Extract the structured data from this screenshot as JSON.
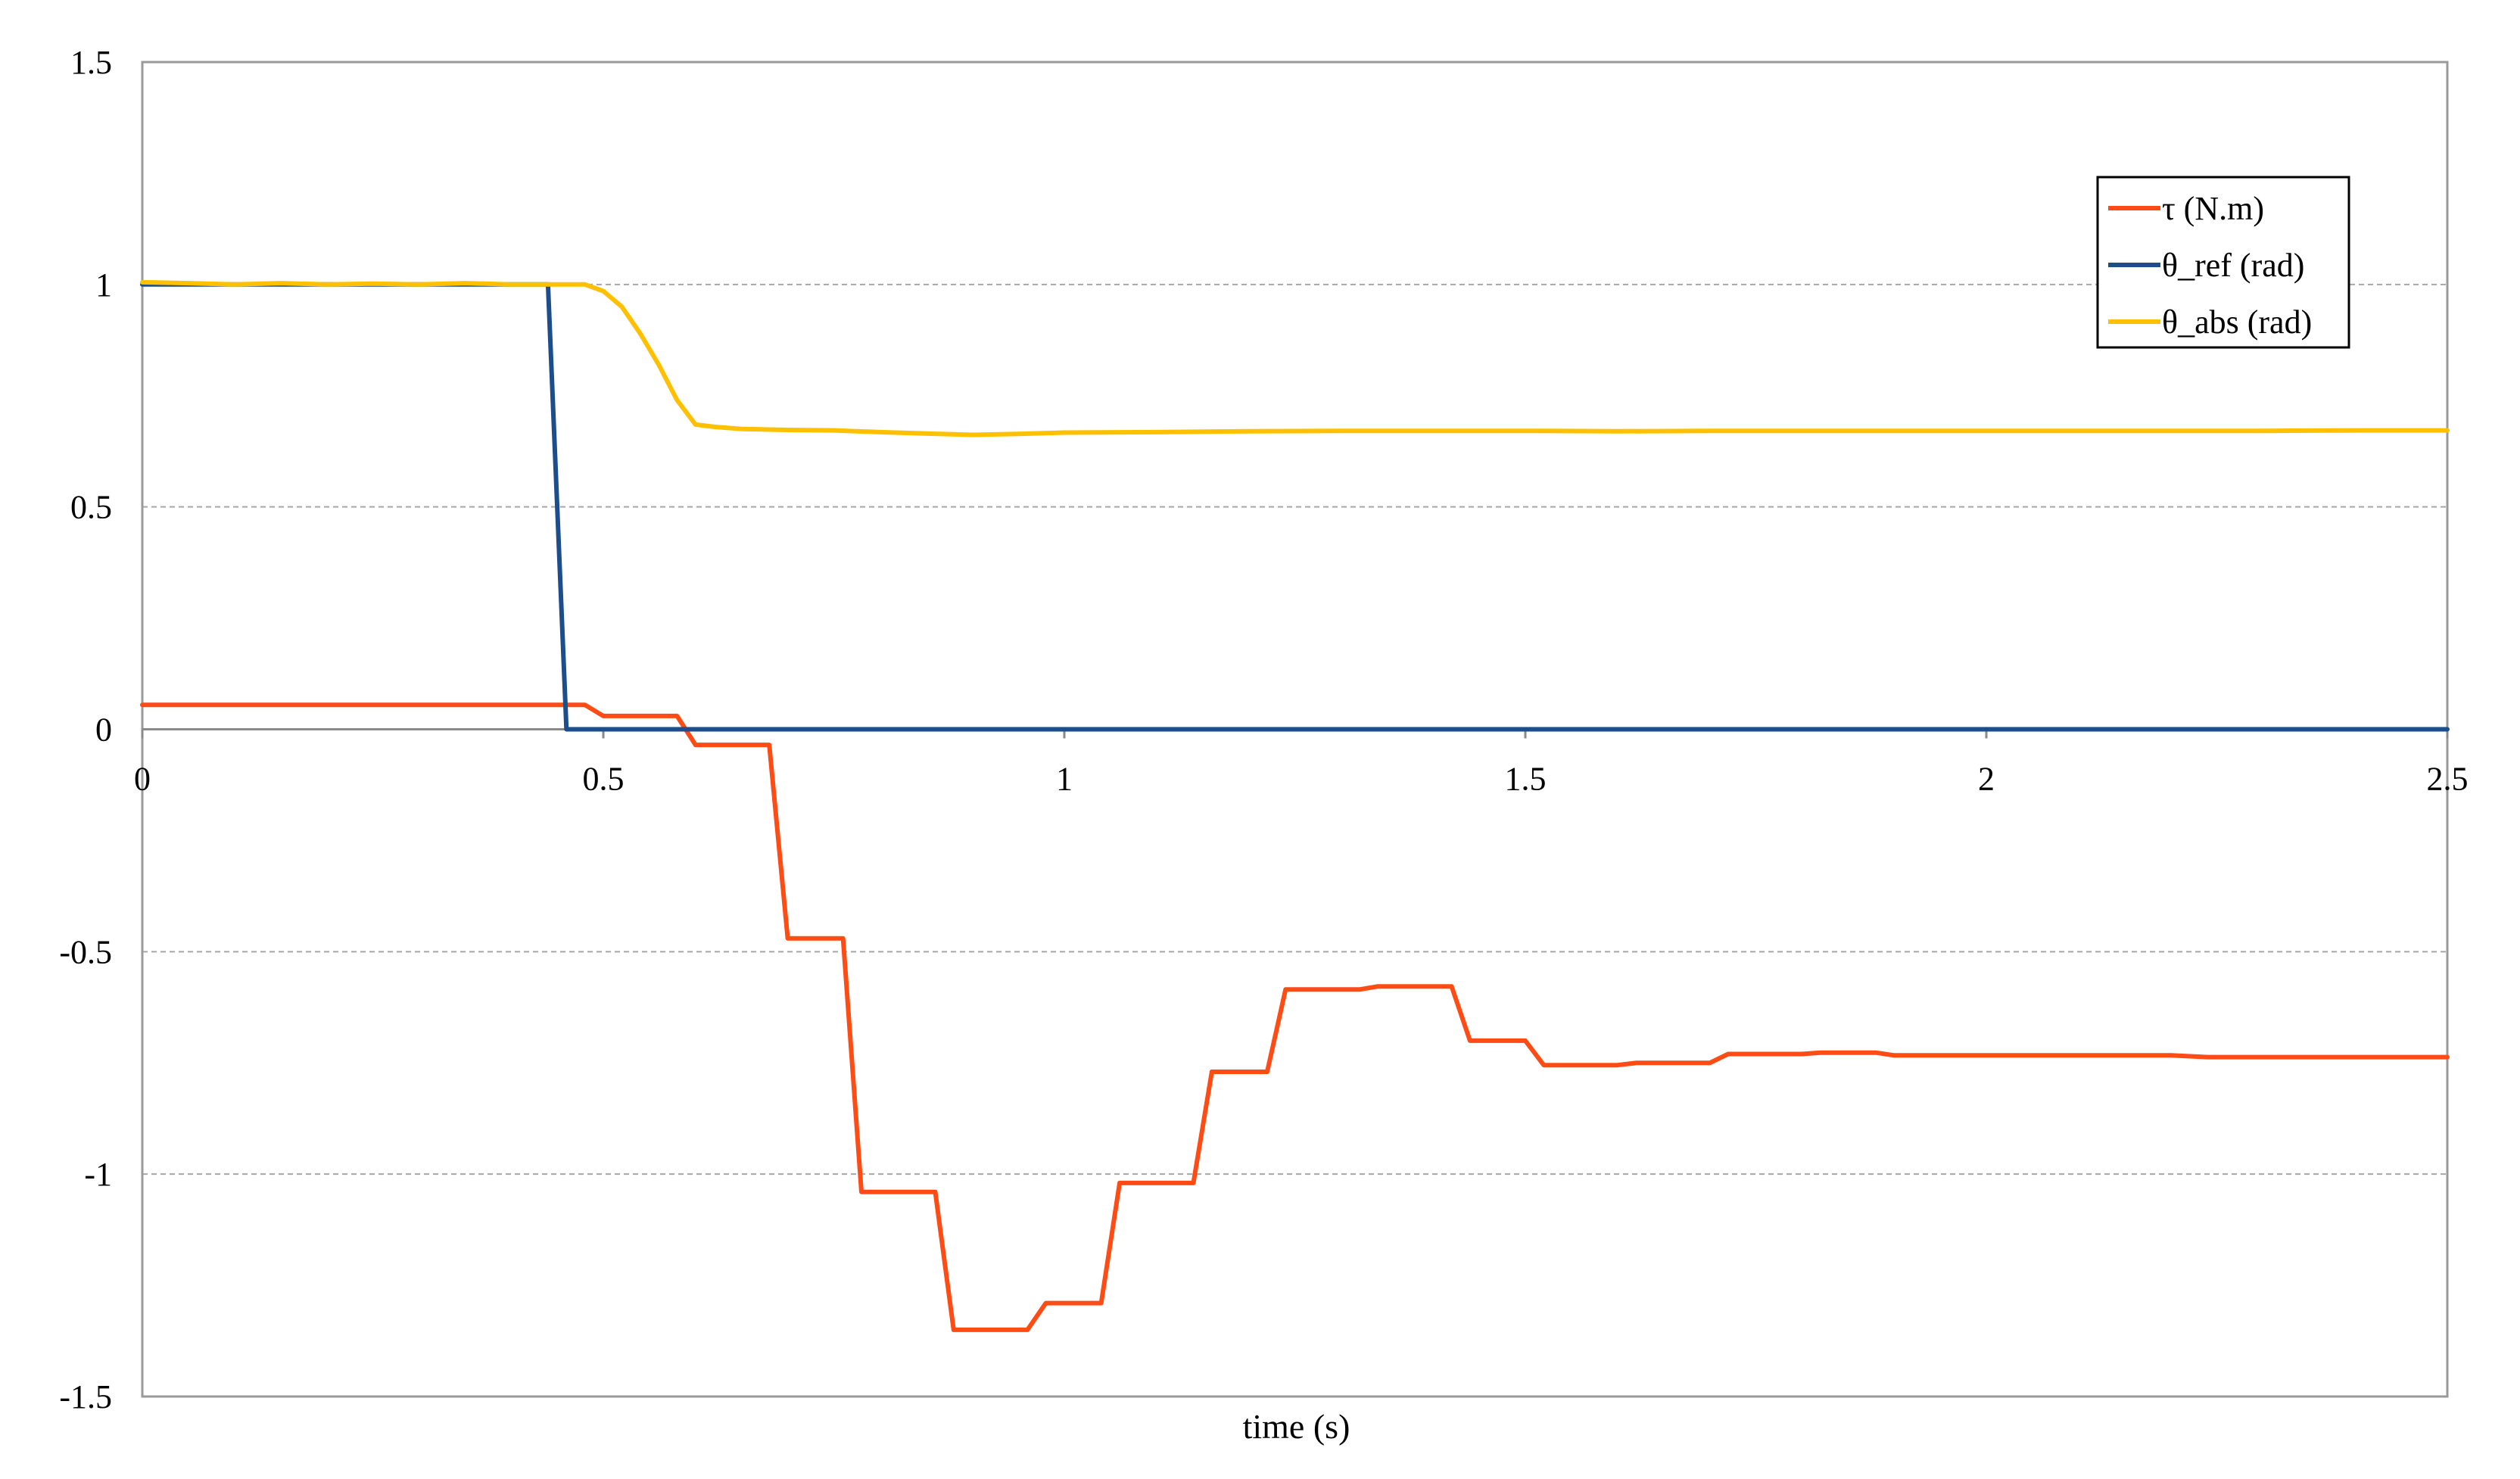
{
  "chart_data": {
    "type": "line",
    "title": "",
    "xlabel": "time (s)",
    "ylabel": "",
    "xlim": [
      0,
      2.5
    ],
    "ylim": [
      -1.5,
      1.5
    ],
    "xticks": [
      "0",
      "0.5",
      "1",
      "1.5",
      "2",
      "2.5"
    ],
    "yticks": [
      "1.5",
      "1",
      "0.5",
      "0",
      "-0.5",
      "-1",
      "-1.5"
    ],
    "xtick_values": [
      0,
      0.5,
      1,
      1.5,
      2,
      2.5
    ],
    "ytick_values": [
      1.5,
      1,
      0.5,
      0,
      -0.5,
      -1,
      -1.5
    ],
    "grid": "horizontal dashed",
    "legend_position": "top-right",
    "series": [
      {
        "name": "τ (N.m)",
        "color": "#FF4B14",
        "points": [
          [
            0,
            0.055
          ],
          [
            0.48,
            0.055
          ],
          [
            0.5,
            0.03
          ],
          [
            0.58,
            0.03
          ],
          [
            0.6,
            -0.035
          ],
          [
            0.68,
            -0.035
          ],
          [
            0.7,
            -0.47
          ],
          [
            0.76,
            -0.47
          ],
          [
            0.78,
            -1.04
          ],
          [
            0.86,
            -1.04
          ],
          [
            0.88,
            -1.35
          ],
          [
            0.96,
            -1.35
          ],
          [
            0.98,
            -1.29
          ],
          [
            1.04,
            -1.29
          ],
          [
            1.06,
            -1.02
          ],
          [
            1.14,
            -1.02
          ],
          [
            1.16,
            -0.77
          ],
          [
            1.22,
            -0.77
          ],
          [
            1.24,
            -0.585
          ],
          [
            1.32,
            -0.585
          ],
          [
            1.34,
            -0.578
          ],
          [
            1.42,
            -0.578
          ],
          [
            1.44,
            -0.7
          ],
          [
            1.5,
            -0.7
          ],
          [
            1.52,
            -0.755
          ],
          [
            1.6,
            -0.755
          ],
          [
            1.62,
            -0.75
          ],
          [
            1.7,
            -0.75
          ],
          [
            1.72,
            -0.73
          ],
          [
            1.8,
            -0.73
          ],
          [
            1.82,
            -0.727
          ],
          [
            1.88,
            -0.727
          ],
          [
            1.9,
            -0.733
          ],
          [
            2.0,
            -0.733
          ],
          [
            2.1,
            -0.733
          ],
          [
            2.2,
            -0.733
          ],
          [
            2.24,
            -0.737
          ],
          [
            2.3,
            -0.737
          ],
          [
            2.5,
            -0.737
          ]
        ]
      },
      {
        "name": "θ_ref (rad)",
        "color": "#1C4E8C",
        "points": [
          [
            0,
            1.0
          ],
          [
            0.44,
            1.0
          ],
          [
            0.46,
            0.0
          ],
          [
            2.5,
            0.0
          ]
        ]
      },
      {
        "name": "θ_abs (rad)",
        "color": "#FFC000",
        "points": [
          [
            0,
            1.005
          ],
          [
            0.05,
            1.003
          ],
          [
            0.1,
            1.0
          ],
          [
            0.15,
            1.003
          ],
          [
            0.2,
            1.0
          ],
          [
            0.25,
            1.002
          ],
          [
            0.3,
            1.0
          ],
          [
            0.35,
            1.003
          ],
          [
            0.4,
            1.0
          ],
          [
            0.44,
            1.0
          ],
          [
            0.48,
            1.0
          ],
          [
            0.5,
            0.985
          ],
          [
            0.52,
            0.95
          ],
          [
            0.54,
            0.89
          ],
          [
            0.56,
            0.82
          ],
          [
            0.58,
            0.74
          ],
          [
            0.6,
            0.685
          ],
          [
            0.62,
            0.68
          ],
          [
            0.65,
            0.675
          ],
          [
            0.7,
            0.673
          ],
          [
            0.75,
            0.672
          ],
          [
            0.8,
            0.668
          ],
          [
            0.85,
            0.665
          ],
          [
            0.9,
            0.662
          ],
          [
            0.95,
            0.664
          ],
          [
            1.0,
            0.667
          ],
          [
            1.1,
            0.668
          ],
          [
            1.2,
            0.67
          ],
          [
            1.3,
            0.671
          ],
          [
            1.4,
            0.671
          ],
          [
            1.5,
            0.671
          ],
          [
            1.6,
            0.67
          ],
          [
            1.7,
            0.671
          ],
          [
            1.8,
            0.671
          ],
          [
            1.9,
            0.671
          ],
          [
            2.0,
            0.671
          ],
          [
            2.1,
            0.671
          ],
          [
            2.2,
            0.671
          ],
          [
            2.3,
            0.671
          ],
          [
            2.4,
            0.672
          ],
          [
            2.5,
            0.672
          ]
        ]
      }
    ]
  }
}
